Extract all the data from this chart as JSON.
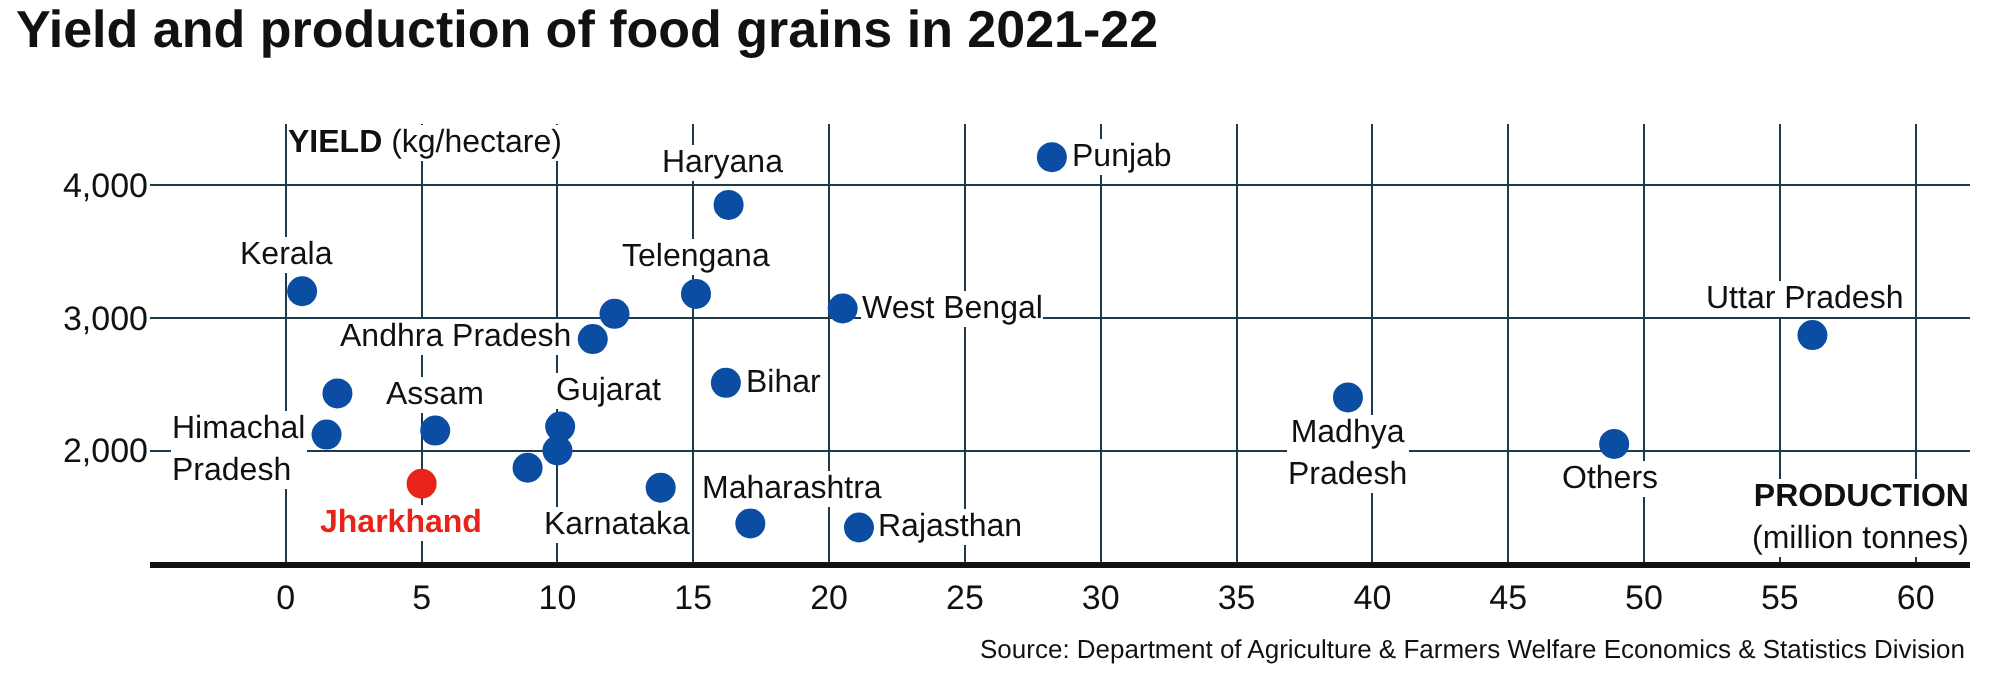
{
  "chart_data": {
    "type": "scatter",
    "title": "Yield and production of food grains in 2021-22",
    "xlabel": "PRODUCTION\n(million tonnes)",
    "ylabel": "YIELD (kg/hectare)",
    "xlim": [
      -5,
      62
    ],
    "xticks": [
      0,
      5,
      10,
      15,
      20,
      25,
      30,
      35,
      40,
      45,
      50,
      55,
      60
    ],
    "ylim": [
      1160,
      4460
    ],
    "yticks": [
      {
        "value": 2000,
        "label": "2,000"
      },
      {
        "value": 3000,
        "label": "3,000"
      },
      {
        "value": 4000,
        "label": "4,000"
      }
    ],
    "grid": true,
    "marker": "circle",
    "series": [
      {
        "color": "#0a4da2",
        "x": [
          0.6,
          16.3,
          15.1,
          28.2,
          20.5,
          56.2,
          12.1,
          11.3,
          16.2,
          1.9,
          39.1,
          5.5,
          1.5,
          10.1,
          10.0,
          8.9,
          48.9,
          13.8,
          17.1,
          21.1
        ],
        "values": [
          3200,
          3850,
          3180,
          4210,
          3070,
          2870,
          3030,
          2840,
          2510,
          2430,
          2400,
          2150,
          2120,
          2180,
          2000,
          1870,
          2050,
          1720,
          1450,
          1420
        ]
      },
      {
        "color": "#e8231a",
        "x": [
          5.0
        ],
        "values": [
          1750
        ]
      }
    ],
    "annotations": [
      {
        "text": "Kerala",
        "x": 0.6,
        "y": 3200
      },
      {
        "text": "Haryana",
        "x": 16.3,
        "y": 3850
      },
      {
        "text": "Telengana",
        "x": 15.1,
        "y": 3180
      },
      {
        "text": "Punjab",
        "x": 28.2,
        "y": 4210
      },
      {
        "text": "West Bengal",
        "x": 20.5,
        "y": 3070
      },
      {
        "text": "Uttar Pradesh",
        "x": 56.2,
        "y": 2870
      },
      {
        "text": "Andhra Pradesh",
        "x": 11.3,
        "y": 2840
      },
      {
        "text": "Bihar",
        "x": 16.2,
        "y": 2510
      },
      {
        "text": "Madhya\nPradesh",
        "x": 39.1,
        "y": 2400
      },
      {
        "text": "Assam",
        "x": 5.5,
        "y": 2150
      },
      {
        "text": "Himachal\nPradesh",
        "x": 1.5,
        "y": 2120
      },
      {
        "text": "Gujarat",
        "x": 10.1,
        "y": 2180
      },
      {
        "text": "Others",
        "x": 48.9,
        "y": 2050
      },
      {
        "text": "Jharkhand",
        "x": 5.0,
        "y": 1750
      },
      {
        "text": "Karnataka",
        "x": 13.8,
        "y": 1720
      },
      {
        "text": "Maharashtra",
        "x": 17.1,
        "y": 1450
      },
      {
        "text": "Rajasthan",
        "x": 21.1,
        "y": 1420
      },
      "Source: Department of Agriculture & Farmers Welfare Economics & Statistics Division"
    ]
  }
}
